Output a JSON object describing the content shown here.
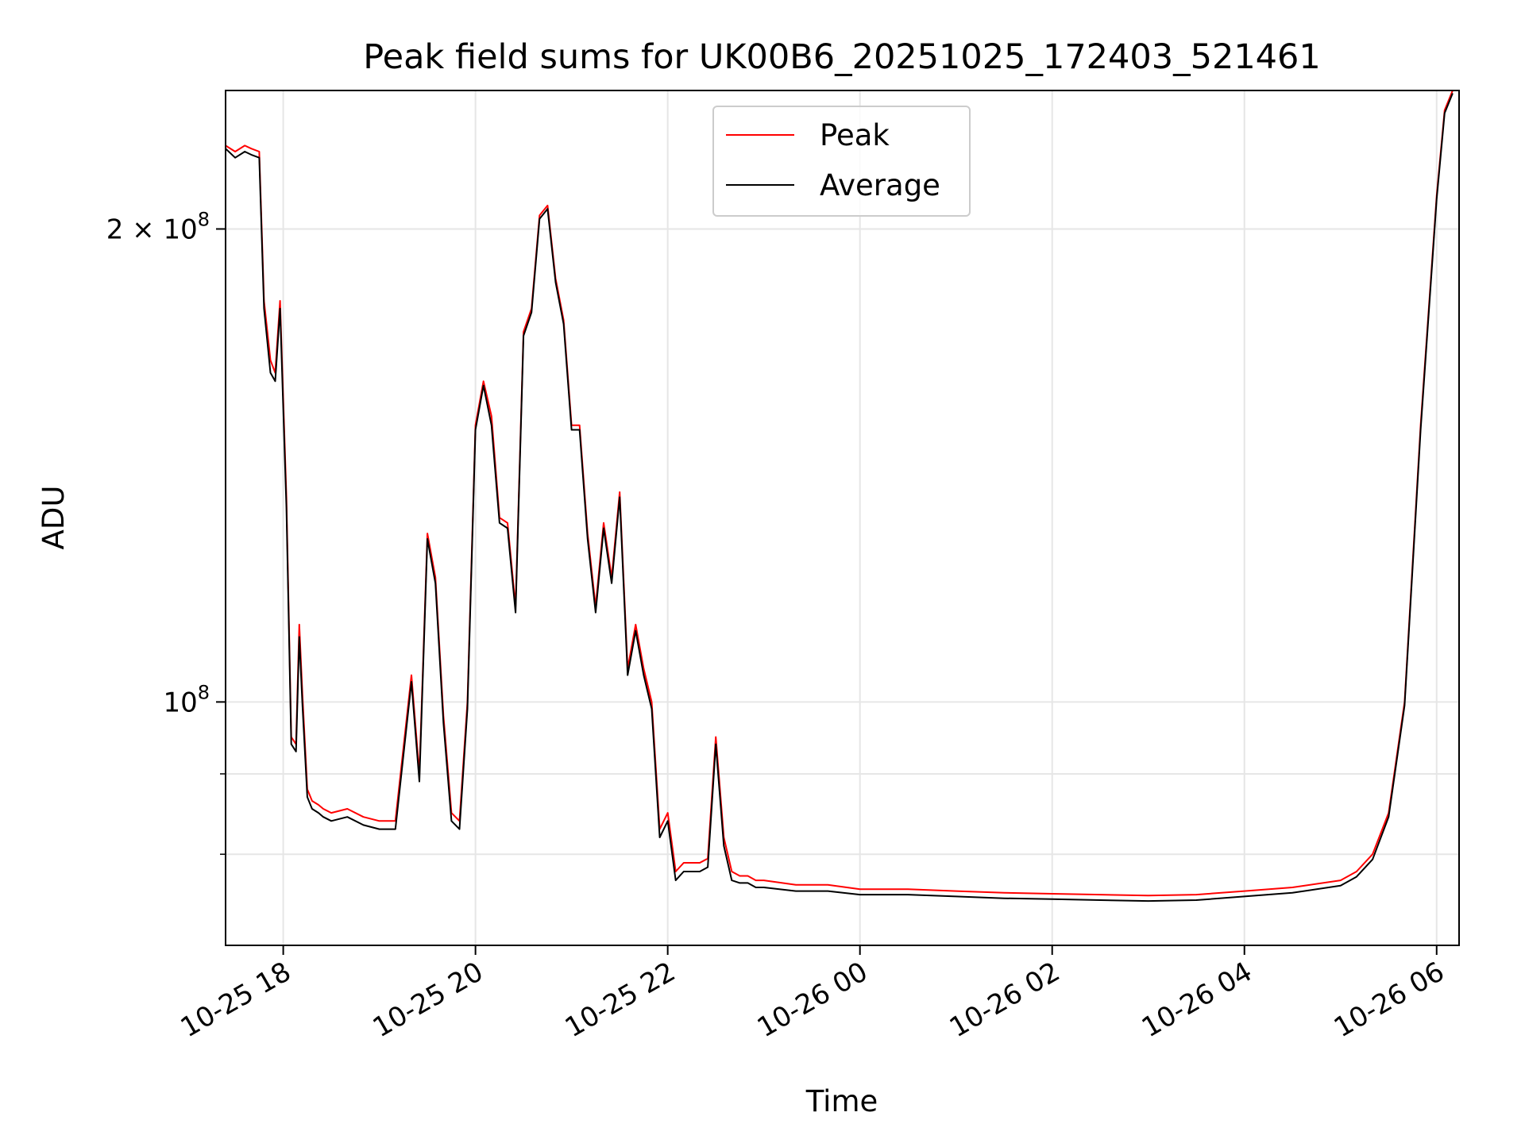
{
  "chart_data": {
    "type": "line",
    "title": "Peak field sums for UK00B6_20251025_172403_521461",
    "xlabel": "Time",
    "ylabel": "ADU",
    "y_scale": "log",
    "ylim": [
      70000000,
      245000000
    ],
    "xlim": [
      "2025-10-25 17:24",
      "2025-10-26 06:14"
    ],
    "grid": true,
    "legend": {
      "placement": "top-center"
    },
    "x_ticks": [
      {
        "label": "10-25 18",
        "time": "2025-10-25 18:00"
      },
      {
        "label": "10-25 20",
        "time": "2025-10-25 20:00"
      },
      {
        "label": "10-25 22",
        "time": "2025-10-25 22:00"
      },
      {
        "label": "10-26 00",
        "time": "2025-10-26 00:00"
      },
      {
        "label": "10-26 02",
        "time": "2025-10-26 02:00"
      },
      {
        "label": "10-26 04",
        "time": "2025-10-26 04:00"
      },
      {
        "label": "10-26 06",
        "time": "2025-10-26 06:00"
      }
    ],
    "y_ticks": [
      {
        "value": 100000000,
        "base": "10",
        "exp": "8",
        "coef": ""
      },
      {
        "value": 200000000,
        "base": "10",
        "exp": "8",
        "coef": "2 × "
      }
    ],
    "y_minor_ticks": [
      80000000,
      90000000
    ],
    "x": [
      "2025-10-25 17:24",
      "2025-10-25 17:30",
      "2025-10-25 17:36",
      "2025-10-25 17:40",
      "2025-10-25 17:45",
      "2025-10-25 17:48",
      "2025-10-25 17:52",
      "2025-10-25 17:55",
      "2025-10-25 17:58",
      "2025-10-25 18:02",
      "2025-10-25 18:05",
      "2025-10-25 18:08",
      "2025-10-25 18:10",
      "2025-10-25 18:12",
      "2025-10-25 18:15",
      "2025-10-25 18:18",
      "2025-10-25 18:22",
      "2025-10-25 18:25",
      "2025-10-25 18:30",
      "2025-10-25 18:40",
      "2025-10-25 18:50",
      "2025-10-25 19:00",
      "2025-10-25 19:10",
      "2025-10-25 19:20",
      "2025-10-25 19:25",
      "2025-10-25 19:30",
      "2025-10-25 19:35",
      "2025-10-25 19:40",
      "2025-10-25 19:45",
      "2025-10-25 19:50",
      "2025-10-25 19:55",
      "2025-10-25 20:00",
      "2025-10-25 20:05",
      "2025-10-25 20:10",
      "2025-10-25 20:15",
      "2025-10-25 20:20",
      "2025-10-25 20:25",
      "2025-10-25 20:30",
      "2025-10-25 20:35",
      "2025-10-25 20:40",
      "2025-10-25 20:45",
      "2025-10-25 20:50",
      "2025-10-25 20:55",
      "2025-10-25 21:00",
      "2025-10-25 21:05",
      "2025-10-25 21:10",
      "2025-10-25 21:15",
      "2025-10-25 21:20",
      "2025-10-25 21:25",
      "2025-10-25 21:30",
      "2025-10-25 21:35",
      "2025-10-25 21:40",
      "2025-10-25 21:45",
      "2025-10-25 21:50",
      "2025-10-25 21:55",
      "2025-10-25 22:00",
      "2025-10-25 22:05",
      "2025-10-25 22:10",
      "2025-10-25 22:15",
      "2025-10-25 22:20",
      "2025-10-25 22:25",
      "2025-10-25 22:30",
      "2025-10-25 22:35",
      "2025-10-25 22:40",
      "2025-10-25 22:45",
      "2025-10-25 22:50",
      "2025-10-25 22:55",
      "2025-10-25 23:00",
      "2025-10-25 23:20",
      "2025-10-25 23:40",
      "2025-10-26 00:00",
      "2025-10-26 00:30",
      "2025-10-26 01:00",
      "2025-10-26 01:30",
      "2025-10-26 02:00",
      "2025-10-26 02:30",
      "2025-10-26 03:00",
      "2025-10-26 03:30",
      "2025-10-26 04:00",
      "2025-10-26 04:30",
      "2025-10-26 05:00",
      "2025-10-26 05:10",
      "2025-10-26 05:20",
      "2025-10-26 05:30",
      "2025-10-26 05:40",
      "2025-10-26 05:50",
      "2025-10-26 06:00",
      "2025-10-26 06:05",
      "2025-10-26 06:10"
    ],
    "series": [
      {
        "name": "Peak",
        "color": "#ff0000",
        "values": [
          226000000,
          224000000,
          226000000,
          225000000,
          224000000,
          180000000,
          165000000,
          162000000,
          180000000,
          135000000,
          95000000,
          94000000,
          112000000,
          101000000,
          88000000,
          86500000,
          86000000,
          85500000,
          85000000,
          85500000,
          84500000,
          84000000,
          84000000,
          104000000,
          90000000,
          128000000,
          120000000,
          98000000,
          85000000,
          84000000,
          100000000,
          150000000,
          160000000,
          152000000,
          131000000,
          130000000,
          115000000,
          172000000,
          178000000,
          204000000,
          207000000,
          186000000,
          175000000,
          150000000,
          150000000,
          128000000,
          115000000,
          130000000,
          120000000,
          136000000,
          105000000,
          112000000,
          105000000,
          100000000,
          83000000,
          85000000,
          78000000,
          79000000,
          79000000,
          79000000,
          79500000,
          95000000,
          82000000,
          78000000,
          77500000,
          77500000,
          77000000,
          77000000,
          76500000,
          76500000,
          76000000,
          76000000,
          75800000,
          75600000,
          75500000,
          75400000,
          75300000,
          75400000,
          75800000,
          76200000,
          77000000,
          78000000,
          80000000,
          85000000,
          100000000,
          150000000,
          210000000,
          238000000,
          245000000
        ]
      },
      {
        "name": "Average",
        "color": "#000000",
        "values": [
          225000000,
          222000000,
          224000000,
          223000000,
          222000000,
          178000000,
          162000000,
          160000000,
          178000000,
          133000000,
          94000000,
          93000000,
          110000000,
          99500000,
          87000000,
          85500000,
          85000000,
          84500000,
          84000000,
          84500000,
          83500000,
          83000000,
          83000000,
          103000000,
          89000000,
          127000000,
          119000000,
          97000000,
          84000000,
          83000000,
          99000000,
          149000000,
          159000000,
          150000000,
          130000000,
          129000000,
          114000000,
          171000000,
          177000000,
          203000000,
          206000000,
          185000000,
          174000000,
          149000000,
          149000000,
          127000000,
          114000000,
          129000000,
          119000000,
          135000000,
          104000000,
          111000000,
          104000000,
          99000000,
          82000000,
          84000000,
          77000000,
          78000000,
          78000000,
          78000000,
          78500000,
          94000000,
          81000000,
          77000000,
          76700000,
          76700000,
          76200000,
          76200000,
          75800000,
          75800000,
          75400000,
          75400000,
          75200000,
          75000000,
          74900000,
          74800000,
          74700000,
          74800000,
          75200000,
          75600000,
          76400000,
          77400000,
          79400000,
          84500000,
          99500000,
          149000000,
          209000000,
          237000000,
          244000000
        ]
      }
    ]
  }
}
